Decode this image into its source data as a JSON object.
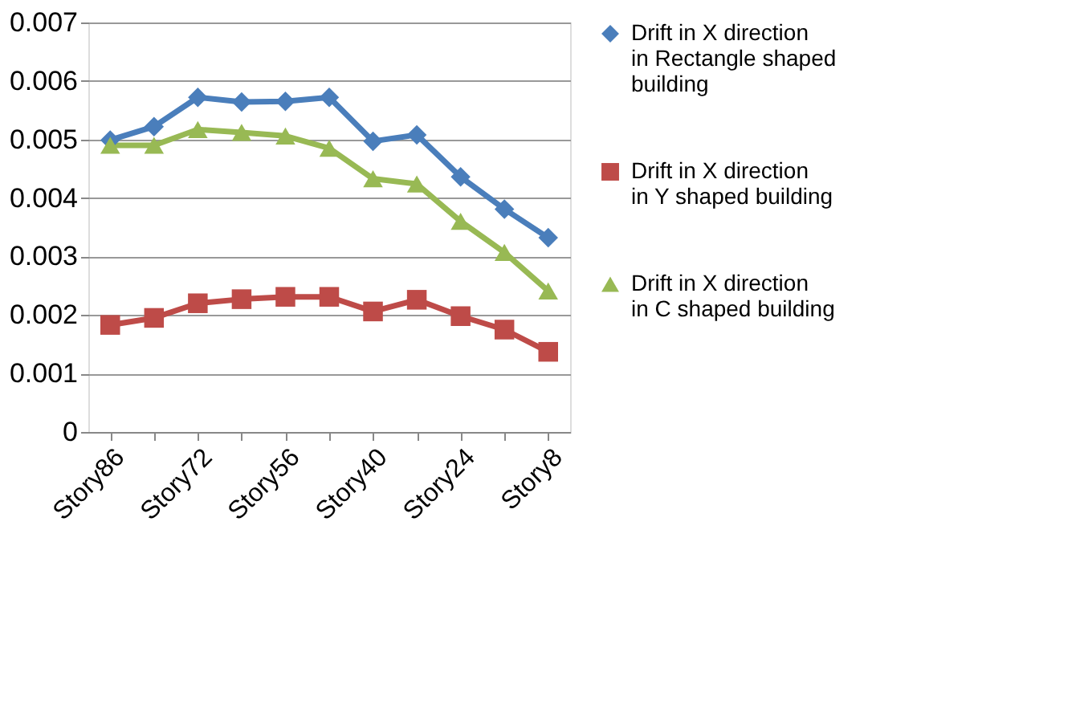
{
  "chart_data": {
    "type": "line",
    "categories": [
      "Story86",
      null,
      "Story72",
      null,
      "Story56",
      null,
      "Story40",
      null,
      "Story24",
      null,
      "Story8"
    ],
    "series": [
      {
        "name": "Drift in X direction in Rectangle shaped building",
        "color": "#4a7ebb",
        "marker": "diamond",
        "values": [
          0.00499,
          0.00522,
          0.00572,
          0.00564,
          0.00565,
          0.00572,
          0.00497,
          0.00508,
          0.00436,
          0.00381,
          0.00332
        ]
      },
      {
        "name": "Drift in X direction in Y shaped building",
        "color": "#be4b48",
        "marker": "square",
        "values": [
          0.00183,
          0.00195,
          0.0022,
          0.00227,
          0.00231,
          0.00231,
          0.00206,
          0.00226,
          0.00198,
          0.00175,
          0.00137
        ]
      },
      {
        "name": "Drift in X direction in C shaped building",
        "color": "#98b954",
        "marker": "triangle",
        "values": [
          0.0049,
          0.0049,
          0.00517,
          0.00512,
          0.00506,
          0.00485,
          0.00433,
          0.00424,
          0.0036,
          0.00307,
          0.00241
        ]
      }
    ],
    "ylim": [
      0,
      0.007
    ],
    "yticks": [
      0,
      0.001,
      0.002,
      0.003,
      0.004,
      0.005,
      0.006,
      0.007
    ],
    "grid": "y",
    "legend": "right"
  }
}
